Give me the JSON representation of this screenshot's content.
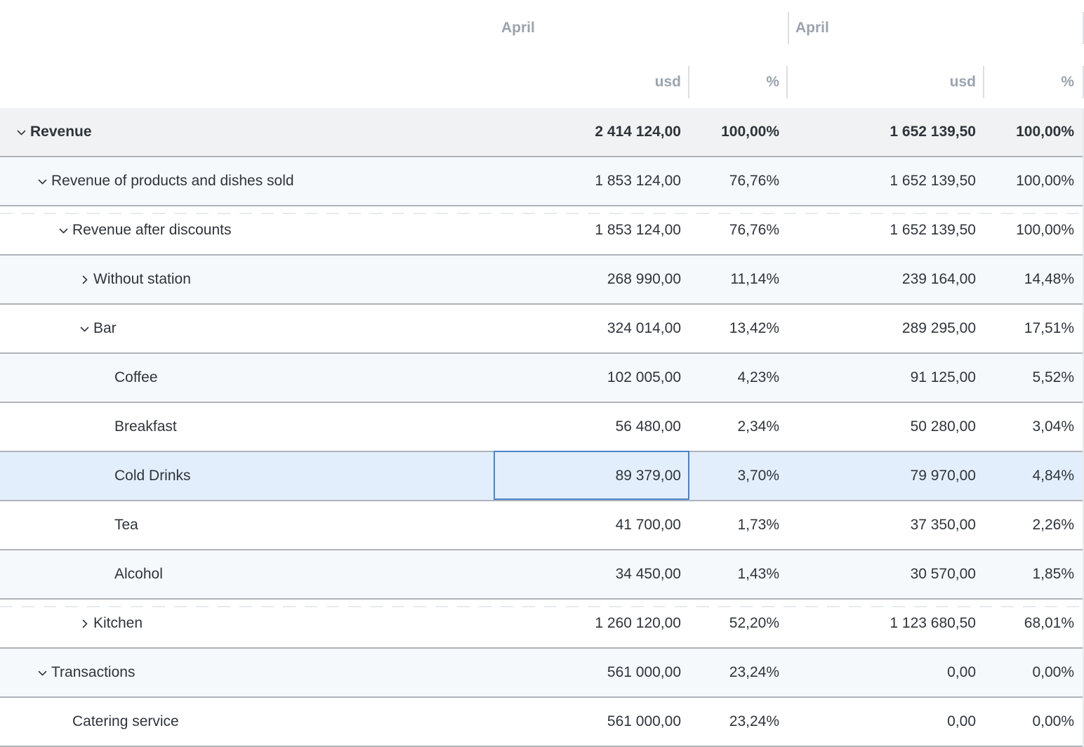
{
  "table": {
    "period_headers": [
      {
        "label": "April"
      },
      {
        "label": "April"
      }
    ],
    "column_headers": [
      "usd",
      "%",
      "usd",
      "%"
    ],
    "rows": [
      {
        "label": "Revenue",
        "level": 0,
        "chevron": "down",
        "bg": "total",
        "bold": true,
        "dashed_top": false,
        "selected_cell": null,
        "values": [
          "2 414 124,00",
          "100,00%",
          "1 652 139,50",
          "100,00%"
        ]
      },
      {
        "label": "Revenue of products and dishes sold",
        "level": 1,
        "chevron": "down",
        "bg": "stripe",
        "bold": false,
        "dashed_top": false,
        "selected_cell": null,
        "values": [
          "1 853 124,00",
          "76,76%",
          "1 652 139,50",
          "100,00%"
        ]
      },
      {
        "label": "Revenue after discounts",
        "level": 2,
        "chevron": "down",
        "bg": "white",
        "bold": false,
        "dashed_top": true,
        "selected_cell": null,
        "values": [
          "1 853 124,00",
          "76,76%",
          "1 652 139,50",
          "100,00%"
        ]
      },
      {
        "label": "Without station",
        "level": 3,
        "chevron": "right",
        "bg": "stripe",
        "bold": false,
        "dashed_top": false,
        "selected_cell": null,
        "values": [
          "268 990,00",
          "11,14%",
          "239 164,00",
          "14,48%"
        ]
      },
      {
        "label": "Bar",
        "level": 3,
        "chevron": "down",
        "bg": "white",
        "bold": false,
        "dashed_top": false,
        "selected_cell": null,
        "values": [
          "324 014,00",
          "13,42%",
          "289 295,00",
          "17,51%"
        ]
      },
      {
        "label": "Coffee",
        "level": 4,
        "chevron": null,
        "bg": "stripe",
        "bold": false,
        "dashed_top": false,
        "selected_cell": null,
        "values": [
          "102 005,00",
          "4,23%",
          "91 125,00",
          "5,52%"
        ]
      },
      {
        "label": "Breakfast",
        "level": 4,
        "chevron": null,
        "bg": "white",
        "bold": false,
        "dashed_top": false,
        "selected_cell": null,
        "values": [
          "56 480,00",
          "2,34%",
          "50 280,00",
          "3,04%"
        ]
      },
      {
        "label": "Cold Drinks",
        "level": 4,
        "chevron": null,
        "bg": "selected",
        "bold": false,
        "dashed_top": false,
        "selected_cell": 0,
        "values": [
          "89 379,00",
          "3,70%",
          "79 970,00",
          "4,84%"
        ]
      },
      {
        "label": "Tea",
        "level": 4,
        "chevron": null,
        "bg": "white",
        "bold": false,
        "dashed_top": false,
        "selected_cell": null,
        "values": [
          "41 700,00",
          "1,73%",
          "37 350,00",
          "2,26%"
        ]
      },
      {
        "label": "Alcohol",
        "level": 4,
        "chevron": null,
        "bg": "stripe",
        "bold": false,
        "dashed_top": false,
        "selected_cell": null,
        "values": [
          "34 450,00",
          "1,43%",
          "30 570,00",
          "1,85%"
        ]
      },
      {
        "label": "Kitchen",
        "level": 3,
        "chevron": "right",
        "bg": "white",
        "bold": false,
        "dashed_top": true,
        "selected_cell": null,
        "values": [
          "1 260 120,00",
          "52,20%",
          "1 123 680,50",
          "68,01%"
        ]
      },
      {
        "label": "Transactions",
        "level": 1,
        "chevron": "down",
        "bg": "stripe",
        "bold": false,
        "dashed_top": false,
        "selected_cell": null,
        "values": [
          "561 000,00",
          "23,24%",
          "0,00",
          "0,00%"
        ]
      },
      {
        "label": "Catering service",
        "level": 2,
        "chevron": null,
        "bg": "white",
        "bold": false,
        "dashed_top": false,
        "selected_cell": null,
        "values": [
          "561 000,00",
          "23,24%",
          "0,00",
          "0,00%"
        ]
      }
    ]
  },
  "icons": {
    "expanded": "chevron-down",
    "collapsed": "chevron-right"
  },
  "colors": {
    "body_text": "#2e343b",
    "header_text": "#9ba3ae",
    "total_row_bg": "#f1f2f3",
    "stripe_row_bg": "#f6f9fb",
    "selected_row_bg": "#e3eefc",
    "selected_cell_border": "#4a84c6",
    "row_divider": "#adb3b9",
    "header_separator": "#dbdee2"
  }
}
